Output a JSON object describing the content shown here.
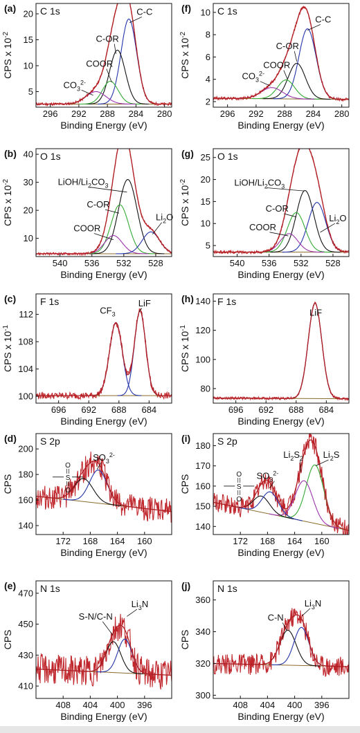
{
  "colors": {
    "raw": "#c0272d",
    "fit": "#b01e24",
    "axis": "#111111",
    "background": "#e6e6e6"
  },
  "chart_data": [
    {
      "panel": "(a)",
      "title": "C 1s",
      "type": "line",
      "xlabel": "Binding Energy (eV)",
      "ylabel": "CPS x 10",
      "yexp": "-2",
      "xlim": [
        298,
        279
      ],
      "ylim": [
        2,
        22
      ],
      "xticks": [
        296,
        292,
        288,
        284,
        280
      ],
      "yticks": [
        5,
        10,
        15,
        20
      ],
      "baseline": [
        2.6,
        2.6
      ],
      "noise": 0.25,
      "peaks": [
        {
          "center": 285.0,
          "height": 16.4,
          "width": 1.1,
          "color": "#2233aa"
        },
        {
          "center": 286.6,
          "height": 10.4,
          "width": 1.1,
          "color": "#111111"
        },
        {
          "center": 287.6,
          "height": 4.4,
          "width": 1.1,
          "color": "#33aa33"
        },
        {
          "center": 289.6,
          "height": 2.4,
          "width": 1.4,
          "color": "#9933aa"
        }
      ],
      "labels": [
        {
          "text": "C-C",
          "x": 282.8,
          "y": 19.8,
          "leader": [
            284.9,
            18.3
          ]
        },
        {
          "text": "C-OR",
          "x": 288.0,
          "y": 14.6,
          "leader": [
            286.8,
            12.3
          ]
        },
        {
          "text": "COOR",
          "x": 289.1,
          "y": 9.8,
          "leader": [
            287.4,
            6.8
          ]
        },
        {
          "text": "CO",
          "sub": "3",
          "sup": "2-",
          "x": 292.6,
          "y": 5.7,
          "leader": [
            290.0,
            4.3
          ]
        }
      ]
    },
    {
      "panel": "(f)",
      "title": "C 1s",
      "type": "line",
      "xlabel": "Binding Energy (eV)",
      "ylabel": "CPS x 10",
      "yexp": "-2",
      "xlim": [
        298,
        279
      ],
      "ylim": [
        1.5,
        10.8
      ],
      "xticks": [
        296,
        292,
        288,
        284,
        280
      ],
      "yticks": [
        2,
        4,
        6,
        8,
        10
      ],
      "baseline": [
        2.3,
        2.2
      ],
      "noise": 0.12,
      "peaks": [
        {
          "center": 284.8,
          "height": 6.3,
          "width": 1.2,
          "color": "#2233aa"
        },
        {
          "center": 286.3,
          "height": 3.2,
          "width": 1.2,
          "color": "#111111"
        },
        {
          "center": 287.8,
          "height": 1.7,
          "width": 1.2,
          "color": "#33aa33"
        },
        {
          "center": 289.8,
          "height": 1.0,
          "width": 1.5,
          "color": "#9933aa"
        }
      ],
      "labels": [
        {
          "text": "C-C",
          "x": 282.6,
          "y": 9.1,
          "leader": [
            284.8,
            8.4
          ]
        },
        {
          "text": "C-OR",
          "x": 287.6,
          "y": 6.7,
          "leader": [
            286.3,
            5.6
          ]
        },
        {
          "text": "COOR",
          "x": 289.1,
          "y": 5.0,
          "leader": [
            287.6,
            4.0
          ]
        },
        {
          "text": "CO",
          "sub": "3",
          "sup": "2-",
          "x": 292.4,
          "y": 4.0,
          "leader": [
            290.0,
            3.4
          ]
        }
      ]
    },
    {
      "panel": "(b)",
      "title": "O 1s",
      "type": "line",
      "xlabel": "Binding Energy (eV)",
      "ylabel": "CPS x 10",
      "yexp": "-2",
      "xlim": [
        543,
        526
      ],
      "ylim": [
        3.5,
        42
      ],
      "xticks": [
        540,
        536,
        532,
        528
      ],
      "yticks": [
        10,
        20,
        30,
        40
      ],
      "baseline": [
        4.5,
        4.5
      ],
      "noise": 0.4,
      "peaks": [
        {
          "center": 531.5,
          "height": 26.5,
          "width": 1.15,
          "color": "#111111"
        },
        {
          "center": 532.5,
          "height": 17.5,
          "width": 1.1,
          "color": "#33aa33"
        },
        {
          "center": 533.3,
          "height": 6.5,
          "width": 1.1,
          "color": "#9933aa"
        },
        {
          "center": 528.6,
          "height": 7.8,
          "width": 1.1,
          "color": "#2233aa"
        }
      ],
      "labels": [
        {
          "text": "LiOH/Li",
          "sub": "2",
          "tail": "CO",
          "sub2": "3",
          "x": 537.1,
          "y": 29.0,
          "leader": [
            531.6,
            26.5
          ]
        },
        {
          "text": "C-OR",
          "x": 535.2,
          "y": 21.0,
          "leader": [
            532.6,
            19.0
          ]
        },
        {
          "text": "COOR",
          "x": 536.6,
          "y": 12.5,
          "leader": [
            533.3,
            9.5
          ]
        },
        {
          "text": "Li",
          "sub": "2",
          "tail": "O",
          "x": 526.9,
          "y": 16.4,
          "leader": [
            528.4,
            11.5
          ]
        }
      ]
    },
    {
      "panel": "(g)",
      "title": "O 1s",
      "type": "line",
      "xlabel": "Binding Energy (eV)",
      "ylabel": "CPS x 10",
      "yexp": "-2",
      "xlim": [
        543,
        526
      ],
      "ylim": [
        2.5,
        27
      ],
      "xticks": [
        540,
        536,
        532,
        528
      ],
      "yticks": [
        5,
        10,
        15,
        20,
        25
      ],
      "baseline": [
        3.5,
        3.5
      ],
      "noise": 0.3,
      "peaks": [
        {
          "center": 531.5,
          "height": 14.0,
          "width": 1.1,
          "color": "#111111"
        },
        {
          "center": 530.0,
          "height": 11.3,
          "width": 1.1,
          "color": "#2233aa"
        },
        {
          "center": 532.6,
          "height": 9.0,
          "width": 1.1,
          "color": "#33aa33"
        },
        {
          "center": 533.5,
          "height": 4.2,
          "width": 1.1,
          "color": "#9933aa"
        }
      ],
      "labels": [
        {
          "text": "LiOH/Li",
          "sub": "2",
          "tail": "CO",
          "sub2": "3",
          "x": 537.2,
          "y": 18.6,
          "leader": [
            531.6,
            17.4
          ]
        },
        {
          "text": "C-OR",
          "x": 535.0,
          "y": 12.7,
          "leader": [
            532.6,
            11.5
          ]
        },
        {
          "text": "COOR",
          "x": 536.8,
          "y": 8.5,
          "leader": [
            533.6,
            7.2
          ]
        },
        {
          "text": "Li",
          "sub": "2",
          "tail": "O",
          "x": 527.4,
          "y": 10.5,
          "leader": [
            529.6,
            8.0
          ]
        }
      ]
    },
    {
      "panel": "(c)",
      "title": "F 1s",
      "type": "line",
      "xlabel": "Binding Energy (eV)",
      "ylabel": "CPS x 10",
      "yexp": "-1",
      "xlim": [
        699,
        681
      ],
      "ylim": [
        99,
        115
      ],
      "xticks": [
        696,
        692,
        688,
        684
      ],
      "yticks": [
        100,
        104,
        108,
        112
      ],
      "baseline": [
        100.1,
        100.1
      ],
      "noise": 0.45,
      "peaks": [
        {
          "center": 688.4,
          "height": 10.7,
          "width": 0.85,
          "color": "#2233aa"
        },
        {
          "center": 685.2,
          "height": 12.4,
          "width": 0.75,
          "color": "#2233aa"
        }
      ],
      "labels": [
        {
          "text": "CF",
          "sub": "3",
          "x": 689.5,
          "y": 112.1,
          "leader": null
        },
        {
          "text": "LiF",
          "x": 684.6,
          "y": 113.2,
          "leader": [
            685.3,
            112.4
          ]
        }
      ]
    },
    {
      "panel": "(h)",
      "title": "F 1s",
      "type": "line",
      "xlabel": "Binding Energy (eV)",
      "ylabel": "CPS x 10",
      "yexp": "-1",
      "xlim": [
        699,
        681
      ],
      "ylim": [
        70,
        145
      ],
      "xticks": [
        696,
        692,
        688,
        684
      ],
      "yticks": [
        80,
        100,
        120,
        140
      ],
      "baseline": [
        73.5,
        73.0
      ],
      "noise": 0.8,
      "peaks": [
        {
          "center": 685.5,
          "height": 65.5,
          "width": 0.9,
          "color": "#2233aa"
        }
      ],
      "labels": [
        {
          "text": "LiF",
          "x": 685.4,
          "y": 130,
          "leader": null
        }
      ]
    },
    {
      "panel": "(d)",
      "title": "S 2p",
      "type": "line",
      "xlabel": "Binding Energy (eV)",
      "ylabel": "CPS",
      "yexp": "",
      "xlim": [
        176,
        156
      ],
      "ylim": [
        133,
        212
      ],
      "xticks": [
        172,
        168,
        164,
        160
      ],
      "yticks": [
        140,
        160,
        180,
        200
      ],
      "baseline": [
        163,
        151
      ],
      "noise": 9,
      "peaks": [
        {
          "center": 169.0,
          "height": 18,
          "width": 1.4,
          "color": "#111111"
        },
        {
          "center": 166.8,
          "height": 26,
          "width": 1.3,
          "color": "#2233aa"
        }
      ],
      "labels": [
        {
          "text": "SO",
          "sub": "3",
          "sup": "2-",
          "x": 166.0,
          "y": 191,
          "leader": [
            167.0,
            184
          ]
        }
      ],
      "sulfone": {
        "x": 171.3,
        "y": 178
      }
    },
    {
      "panel": "(i)",
      "title": "S 2p",
      "type": "line",
      "xlabel": "Binding Energy (eV)",
      "ylabel": "CPS",
      "yexp": "",
      "xlim": [
        176,
        156
      ],
      "ylim": [
        136,
        186
      ],
      "xticks": [
        172,
        168,
        164,
        160
      ],
      "yticks": [
        140,
        150,
        160,
        170,
        180
      ],
      "baseline": [
        152,
        138
      ],
      "noise": 4.5,
      "peaks": [
        {
          "center": 161.0,
          "height": 29,
          "width": 1.3,
          "color": "#33aa33"
        },
        {
          "center": 162.6,
          "height": 20,
          "width": 1.3,
          "color": "#9933aa"
        },
        {
          "center": 168.9,
          "height": 8,
          "width": 1.2,
          "color": "#111111"
        },
        {
          "center": 167.6,
          "height": 11,
          "width": 1.2,
          "color": "#2233aa"
        }
      ],
      "labels": [
        {
          "text": "Li",
          "sub": "2",
          "tail": "S",
          "sub2": "2",
          "x": 164.2,
          "y": 174,
          "leader": [
            163.1,
            167
          ]
        },
        {
          "text": "Li",
          "sub": "2",
          "tail": "S",
          "x": 158.6,
          "y": 174,
          "leader": [
            160.9,
            170
          ]
        },
        {
          "text": "SO",
          "sub": "3",
          "sup": "2-",
          "x": 168.0,
          "y": 163.5,
          "leader": [
            167.7,
            159
          ]
        }
      ],
      "sulfone": {
        "x": 172.2,
        "y": 160
      }
    },
    {
      "panel": "(e)",
      "title": "N 1s",
      "type": "line",
      "xlabel": "Binding Energy (eV)",
      "ylabel": "CPS",
      "yexp": "",
      "xlim": [
        412,
        392
      ],
      "ylim": [
        402,
        478
      ],
      "xticks": [
        408,
        404,
        400,
        396
      ],
      "yticks": [
        410,
        430,
        450,
        470
      ],
      "baseline": [
        421,
        417
      ],
      "noise": 9,
      "peaks": [
        {
          "center": 400.6,
          "height": 20,
          "width": 1.1,
          "color": "#111111"
        },
        {
          "center": 398.9,
          "height": 22,
          "width": 1.05,
          "color": "#2233aa"
        }
      ],
      "labels": [
        {
          "text": "S-N/C-N",
          "x": 403.2,
          "y": 453,
          "leader": [
            400.7,
            443
          ]
        },
        {
          "text": "Li",
          "sub": "3",
          "tail": "N",
          "x": 396.7,
          "y": 461,
          "leader": [
            398.6,
            455
          ]
        }
      ]
    },
    {
      "panel": "(j)",
      "title": "N 1s",
      "type": "line",
      "xlabel": "Binding Energy (eV)",
      "ylabel": "CPS",
      "yexp": "",
      "xlim": [
        412,
        392
      ],
      "ylim": [
        298,
        372
      ],
      "xticks": [
        408,
        404,
        400,
        396
      ],
      "yticks": [
        300,
        320,
        340,
        360
      ],
      "baseline": [
        320,
        318
      ],
      "noise": 6,
      "peaks": [
        {
          "center": 401.0,
          "height": 22,
          "width": 1.2,
          "color": "#111111"
        },
        {
          "center": 399.0,
          "height": 24,
          "width": 1.1,
          "color": "#2233aa"
        }
      ],
      "labels": [
        {
          "text": "C-N",
          "x": 402.8,
          "y": 347,
          "leader": [
            401.2,
            341
          ]
        },
        {
          "text": "Li",
          "sub": "3",
          "tail": "N",
          "x": 397.3,
          "y": 356,
          "leader": [
            398.9,
            350
          ]
        }
      ]
    }
  ]
}
